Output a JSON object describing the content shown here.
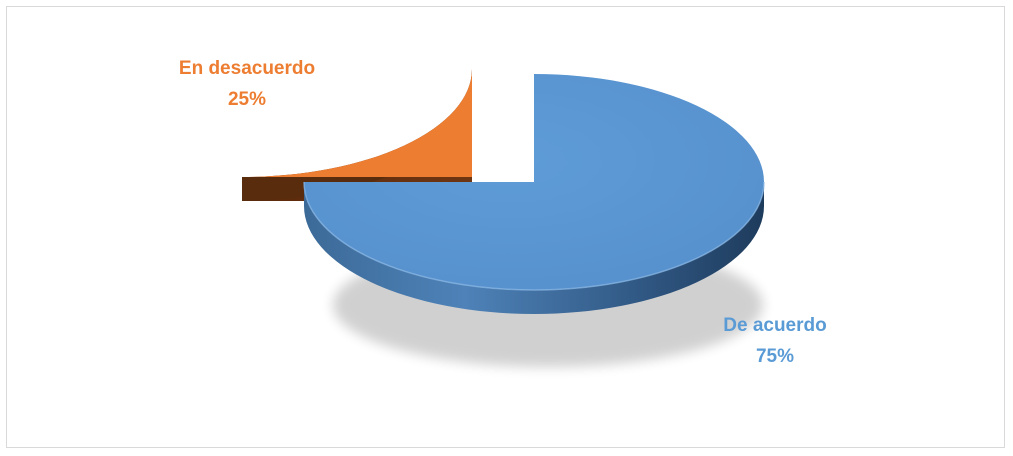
{
  "chart_data": {
    "type": "pie",
    "style": "3d-exploded",
    "categories": [
      "De acuerdo",
      "En desacuerdo"
    ],
    "values": [
      75,
      25
    ],
    "labels": [
      {
        "name": "De acuerdo",
        "percent": "75%"
      },
      {
        "name": "En desacuerdo",
        "percent": "25%"
      }
    ],
    "colors": {
      "De acuerdo": "#5b9bd5",
      "En desacuerdo": "#ed7d31"
    },
    "legend": "none",
    "title": ""
  }
}
